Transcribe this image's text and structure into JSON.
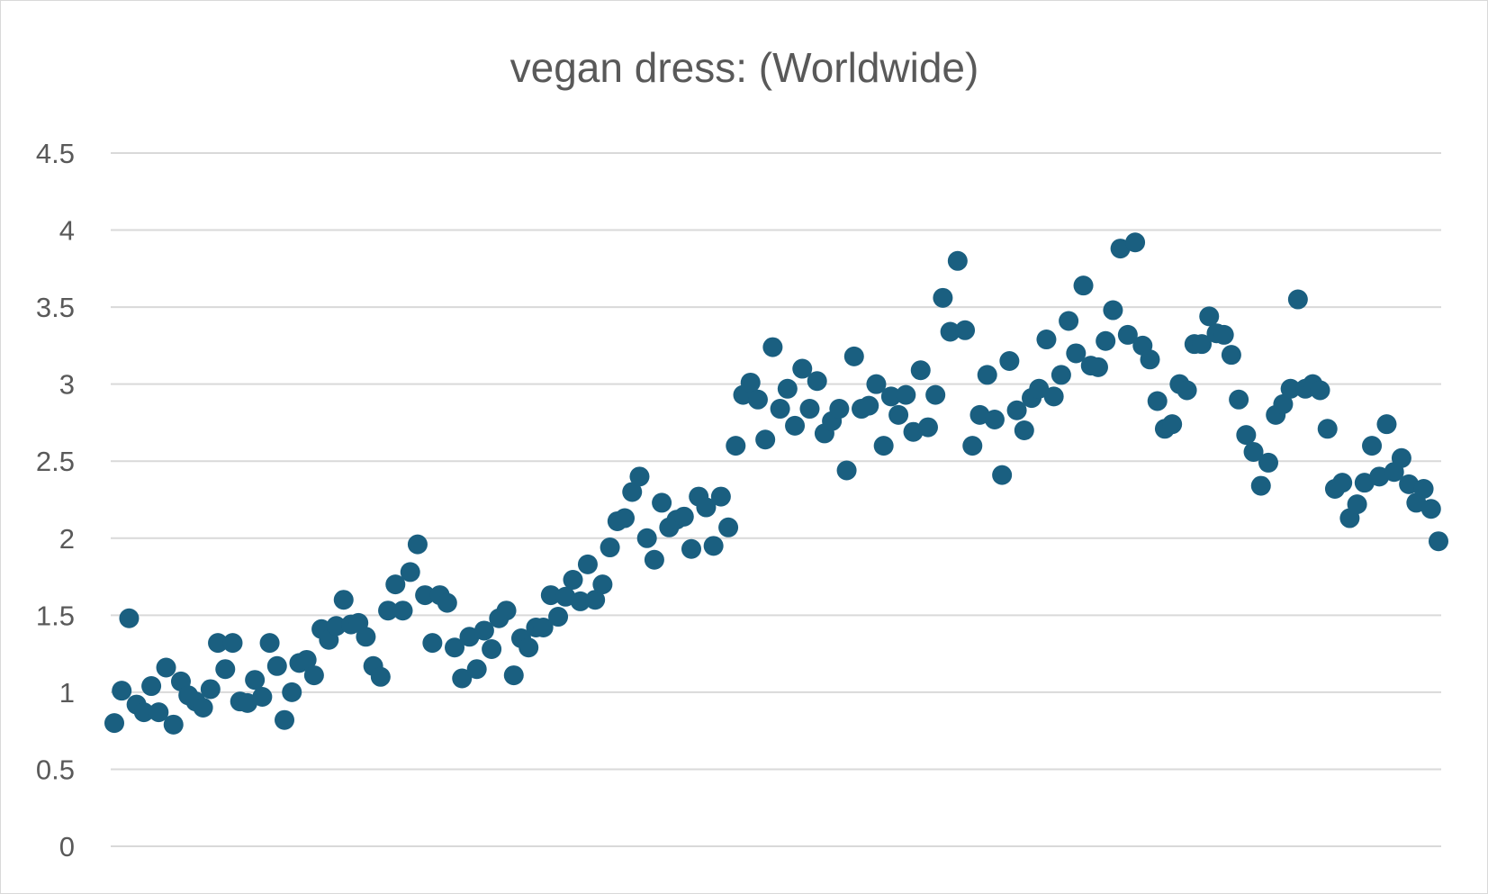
{
  "chart_data": {
    "type": "scatter",
    "title": "vegan dress: (Worldwide)",
    "xlabel": "",
    "ylabel": "",
    "ylim": [
      0,
      4.5
    ],
    "y_ticks": [
      "0",
      "0.5",
      "1",
      "1.5",
      "2",
      "2.5",
      "3",
      "3.5",
      "4",
      "4.5"
    ],
    "grid": "horizontal",
    "legend": "none",
    "marker_color": "#1a5f80",
    "series": [
      {
        "values": [
          0.8,
          1.01,
          1.48,
          0.92,
          0.87,
          1.04,
          0.87,
          1.16,
          0.79,
          1.07,
          0.98,
          0.94,
          0.9,
          1.02,
          1.32,
          1.15,
          1.32,
          0.94,
          0.93,
          1.08,
          0.97,
          1.32,
          1.17,
          0.82,
          1.0,
          1.19,
          1.21,
          1.11,
          1.41,
          1.34,
          1.43,
          1.6,
          1.44,
          1.45,
          1.36,
          1.17,
          1.1,
          1.53,
          1.7,
          1.53,
          1.78,
          1.96,
          1.63,
          1.32,
          1.63,
          1.58,
          1.29,
          1.09,
          1.36,
          1.15,
          1.4,
          1.28,
          1.48,
          1.53,
          1.11,
          1.35,
          1.29,
          1.42,
          1.42,
          1.63,
          1.49,
          1.62,
          1.73,
          1.59,
          1.83,
          1.6,
          1.7,
          1.94,
          2.11,
          2.13,
          2.3,
          2.4,
          2.0,
          1.86,
          2.23,
          2.07,
          2.12,
          2.14,
          1.93,
          2.27,
          2.2,
          1.95,
          2.27,
          2.07,
          2.6,
          2.93,
          3.01,
          2.9,
          2.64,
          3.24,
          2.84,
          2.97,
          2.73,
          3.1,
          2.84,
          3.02,
          2.68,
          2.76,
          2.84,
          2.44,
          3.18,
          2.84,
          2.86,
          3.0,
          2.6,
          2.92,
          2.8,
          2.93,
          2.69,
          3.09,
          2.72,
          2.93,
          3.56,
          3.34,
          3.8,
          3.35,
          2.6,
          2.8,
          3.06,
          2.77,
          2.41,
          3.15,
          2.83,
          2.7,
          2.91,
          2.97,
          3.29,
          2.92,
          3.06,
          3.41,
          3.2,
          3.64,
          3.12,
          3.11,
          3.28,
          3.48,
          3.88,
          3.32,
          3.92,
          3.25,
          3.16,
          2.89,
          2.71,
          2.74,
          3.0,
          2.96,
          3.26,
          3.26,
          3.44,
          3.33,
          3.32,
          3.19,
          2.9,
          2.67,
          2.56,
          2.34,
          2.49,
          2.8,
          2.87,
          2.97,
          3.55,
          2.97,
          3.0,
          2.96,
          2.71,
          2.32,
          2.36,
          2.13,
          2.22,
          2.36,
          2.6,
          2.4,
          2.74,
          2.43,
          2.52,
          2.35,
          2.23,
          2.32,
          2.19,
          1.98
        ]
      }
    ]
  }
}
